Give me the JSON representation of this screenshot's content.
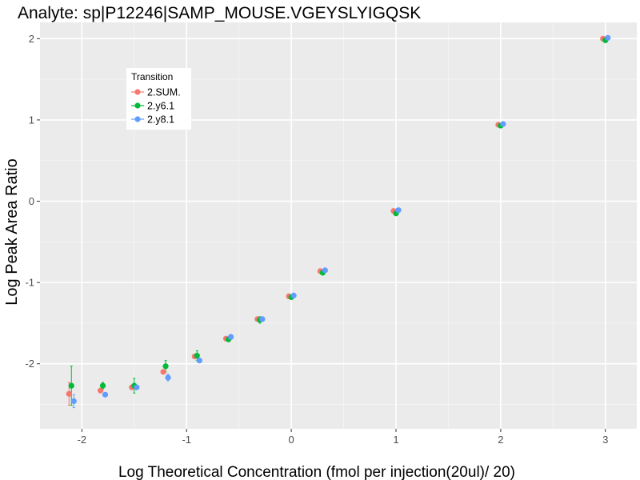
{
  "chart_data": {
    "type": "scatter",
    "title": "Analyte: sp|P12246|SAMP_MOUSE.VGEYSLYIGQSK",
    "xlabel": "Log Theoretical Concentration (fmol per injection(20ul)/ 20)",
    "ylabel": "Log Peak Area Ratio",
    "xlim": [
      -2.4,
      3.3
    ],
    "ylim": [
      -2.8,
      2.2
    ],
    "x_ticks": [
      -2,
      -1,
      0,
      1,
      2,
      3
    ],
    "x_tick_labels": [
      "-2",
      "-1",
      "0",
      "1",
      "2",
      "3"
    ],
    "y_ticks": [
      -2,
      -1,
      0,
      1,
      2
    ],
    "y_tick_labels": [
      "-2",
      "-1",
      "0",
      "1",
      "2"
    ],
    "grid": true,
    "legend": {
      "title": "Transition",
      "position": "top-left",
      "entries": [
        "2.SUM.",
        "2.y6.1",
        "2.y8.1"
      ]
    },
    "series": [
      {
        "name": "2.SUM.",
        "color": "#F8766D",
        "points": [
          {
            "x": -2.1,
            "y": -2.37,
            "err": 0.14
          },
          {
            "x": -1.8,
            "y": -2.33,
            "err": 0.0
          },
          {
            "x": -1.5,
            "y": -2.29,
            "err": 0.0
          },
          {
            "x": -1.2,
            "y": -2.1,
            "err": 0.0
          },
          {
            "x": -0.9,
            "y": -1.91,
            "err": 0.0
          },
          {
            "x": -0.6,
            "y": -1.69,
            "err": 0.0
          },
          {
            "x": -0.3,
            "y": -1.45,
            "err": 0.0
          },
          {
            "x": 0.0,
            "y": -1.17,
            "err": 0.0
          },
          {
            "x": 0.3,
            "y": -0.86,
            "err": 0.0
          },
          {
            "x": 1.0,
            "y": -0.12,
            "err": 0.0
          },
          {
            "x": 2.0,
            "y": 0.94,
            "err": 0.0
          },
          {
            "x": 3.0,
            "y": 2.0,
            "err": 0.0
          }
        ]
      },
      {
        "name": "2.y6.1",
        "color": "#00BA38",
        "points": [
          {
            "x": -2.1,
            "y": -2.27,
            "err": 0.24
          },
          {
            "x": -1.8,
            "y": -2.27,
            "err": 0.04
          },
          {
            "x": -1.5,
            "y": -2.27,
            "err": 0.09
          },
          {
            "x": -1.2,
            "y": -2.03,
            "err": 0.07
          },
          {
            "x": -0.9,
            "y": -1.9,
            "err": 0.06
          },
          {
            "x": -0.6,
            "y": -1.7,
            "err": 0.0
          },
          {
            "x": -0.3,
            "y": -1.46,
            "err": 0.04
          },
          {
            "x": 0.0,
            "y": -1.18,
            "err": 0.0
          },
          {
            "x": 0.3,
            "y": -0.88,
            "err": 0.0
          },
          {
            "x": 1.0,
            "y": -0.15,
            "err": 0.0
          },
          {
            "x": 2.0,
            "y": 0.93,
            "err": 0.0
          },
          {
            "x": 3.0,
            "y": 1.98,
            "err": 0.0
          }
        ]
      },
      {
        "name": "2.y8.1",
        "color": "#619CFF",
        "points": [
          {
            "x": -2.1,
            "y": -2.46,
            "err": 0.08
          },
          {
            "x": -1.8,
            "y": -2.38,
            "err": 0.0
          },
          {
            "x": -1.5,
            "y": -2.29,
            "err": 0.0
          },
          {
            "x": -1.2,
            "y": -2.17,
            "err": 0.04
          },
          {
            "x": -0.9,
            "y": -1.96,
            "err": 0.0
          },
          {
            "x": -0.6,
            "y": -1.67,
            "err": 0.03
          },
          {
            "x": -0.3,
            "y": -1.45,
            "err": 0.0
          },
          {
            "x": 0.0,
            "y": -1.16,
            "err": 0.0
          },
          {
            "x": 0.3,
            "y": -0.85,
            "err": 0.0
          },
          {
            "x": 1.0,
            "y": -0.11,
            "err": 0.0
          },
          {
            "x": 2.0,
            "y": 0.95,
            "err": 0.0
          },
          {
            "x": 3.0,
            "y": 2.01,
            "err": 0.0
          }
        ]
      }
    ]
  }
}
